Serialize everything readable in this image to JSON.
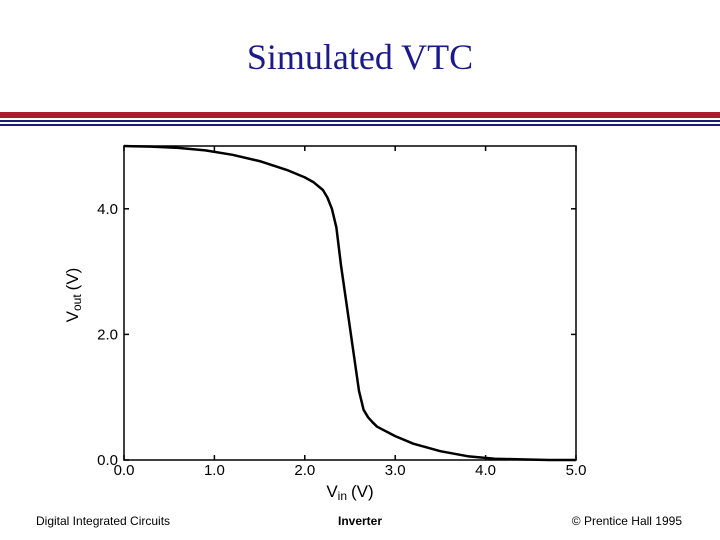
{
  "page": {
    "title": "Simulated VTC",
    "footer_left": "Digital Integrated Circuits",
    "footer_center": "Inverter",
    "footer_right": "© Prentice Hall 1995"
  },
  "colors": {
    "title": "#1a1a8c",
    "rule_red": "#a81c2c",
    "rule_blue": "#1d1d75",
    "curve": "#000000"
  },
  "chart_data": {
    "type": "line",
    "title": "Simulated VTC",
    "xlabel_var": "V",
    "xlabel_sub": "in",
    "xlabel_unit": "(V)",
    "ylabel_var": "V",
    "ylabel_sub": "out",
    "ylabel_unit": "(V)",
    "xlim": [
      0,
      5
    ],
    "ylim": [
      0,
      5
    ],
    "x_ticks": [
      0,
      1,
      2,
      3,
      4,
      5
    ],
    "x_tick_labels": [
      "0.0",
      "1.0",
      "2.0",
      "3.0",
      "4.0",
      "5.0"
    ],
    "y_ticks": [
      0,
      2,
      4
    ],
    "y_tick_labels": [
      "0.0",
      "2.0",
      "4.0"
    ],
    "grid": false,
    "series": [
      {
        "name": "Vout",
        "x": [
          0.0,
          0.3,
          0.6,
          0.9,
          1.2,
          1.5,
          1.8,
          2.0,
          2.1,
          2.2,
          2.25,
          2.3,
          2.35,
          2.4,
          2.45,
          2.5,
          2.55,
          2.6,
          2.65,
          2.7,
          2.75,
          2.8,
          3.0,
          3.2,
          3.5,
          3.8,
          4.1,
          4.4,
          4.7,
          5.0
        ],
        "y": [
          5.0,
          4.99,
          4.97,
          4.93,
          4.86,
          4.76,
          4.62,
          4.5,
          4.42,
          4.3,
          4.18,
          4.0,
          3.7,
          3.1,
          2.6,
          2.1,
          1.6,
          1.1,
          0.8,
          0.68,
          0.6,
          0.53,
          0.38,
          0.26,
          0.14,
          0.06,
          0.02,
          0.01,
          0.0,
          0.0
        ]
      }
    ]
  }
}
